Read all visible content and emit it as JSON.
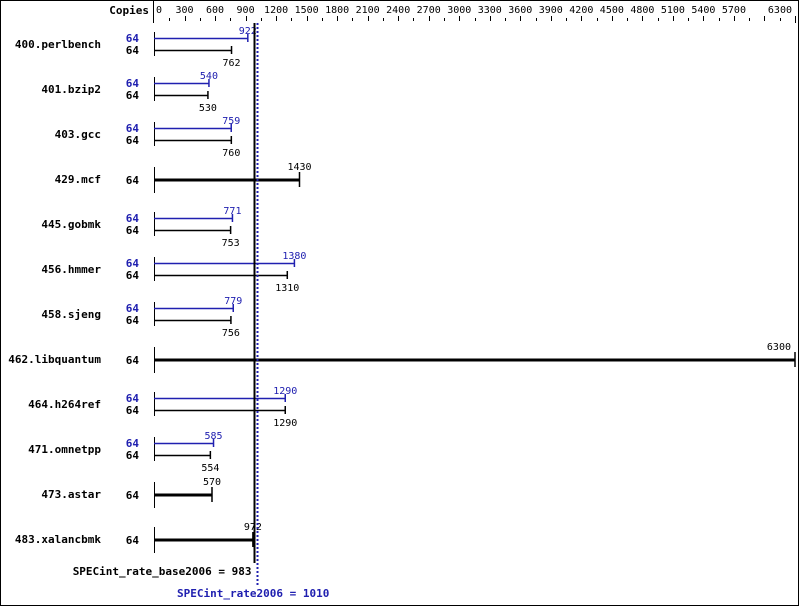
{
  "chart_data": {
    "type": "bar",
    "orientation": "horizontal",
    "axis_label": "Copies",
    "xlim": [
      0,
      6300
    ],
    "tick_labels": [
      "0",
      "300",
      "600",
      "900",
      "1200",
      "1500",
      "1800",
      "2100",
      "2400",
      "2700",
      "3000",
      "3300",
      "3600",
      "3900",
      "4200",
      "4500",
      "4800",
      "5100",
      "5400",
      "5700",
      "6300"
    ],
    "tick_values": [
      0,
      300,
      600,
      900,
      1200,
      1500,
      1800,
      2100,
      2400,
      2700,
      3000,
      3300,
      3600,
      3900,
      4200,
      4500,
      4800,
      5100,
      5400,
      5700,
      6300
    ],
    "minor_tick_step": 150,
    "colors": {
      "base": "#000000",
      "peak": "#2020b0"
    },
    "benchmarks": [
      {
        "name": "400.perlbench",
        "base_copies": "64",
        "peak_copies": "64",
        "base": 762,
        "peak": 922
      },
      {
        "name": "401.bzip2",
        "base_copies": "64",
        "peak_copies": "64",
        "base": 530,
        "peak": 540
      },
      {
        "name": "403.gcc",
        "base_copies": "64",
        "peak_copies": "64",
        "base": 760,
        "peak": 759
      },
      {
        "name": "429.mcf",
        "base_copies": "64",
        "peak_copies": null,
        "base": 1430,
        "peak": null
      },
      {
        "name": "445.gobmk",
        "base_copies": "64",
        "peak_copies": "64",
        "base": 753,
        "peak": 771
      },
      {
        "name": "456.hmmer",
        "base_copies": "64",
        "peak_copies": "64",
        "base": 1310,
        "peak": 1380
      },
      {
        "name": "458.sjeng",
        "base_copies": "64",
        "peak_copies": "64",
        "base": 756,
        "peak": 779
      },
      {
        "name": "462.libquantum",
        "base_copies": "64",
        "peak_copies": null,
        "base": 6300,
        "peak": null
      },
      {
        "name": "464.h264ref",
        "base_copies": "64",
        "peak_copies": "64",
        "base": 1290,
        "peak": 1290
      },
      {
        "name": "471.omnetpp",
        "base_copies": "64",
        "peak_copies": "64",
        "base": 554,
        "peak": 585
      },
      {
        "name": "473.astar",
        "base_copies": "64",
        "peak_copies": null,
        "base": 570,
        "peak": null
      },
      {
        "name": "483.xalancbmk",
        "base_copies": "64",
        "peak_copies": null,
        "base": 972,
        "peak": null
      }
    ],
    "base_summary": {
      "label": "SPECint_rate_base2006 = 983",
      "value": 983
    },
    "peak_summary": {
      "label": "SPECint_rate2006 = 1010",
      "value": 1010
    }
  }
}
